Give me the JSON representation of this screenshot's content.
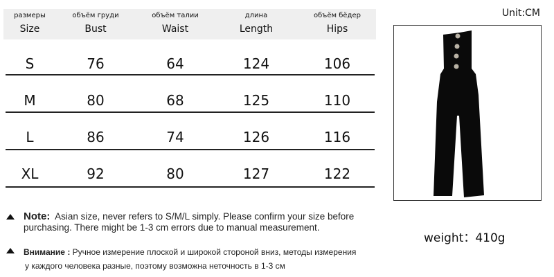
{
  "unit_label": "Unit:CM",
  "weight_label": "weight：410g",
  "table": {
    "headers": [
      {
        "ru": "размеры",
        "en": "Size"
      },
      {
        "ru": "объём груди",
        "en": "Bust"
      },
      {
        "ru": "объём талии",
        "en": "Waist"
      },
      {
        "ru": "длина",
        "en": "Length"
      },
      {
        "ru": "объём бёдер",
        "en": "Hips"
      }
    ],
    "rows": [
      [
        "S",
        "76",
        "64",
        "124",
        "106"
      ],
      [
        "M",
        "80",
        "68",
        "125",
        "110"
      ],
      [
        "L",
        "86",
        "74",
        "126",
        "116"
      ],
      [
        "XL",
        "92",
        "80",
        "127",
        "122"
      ]
    ]
  },
  "notes": {
    "en_label": "Note:",
    "en_line1": "Asian size, never refers to S/M/L simply. Please confirm your size before",
    "en_line2": "purchasing. There might be 1-3 cm errors due to manual measurement.",
    "ru_label": "Внимание :",
    "ru_line1": "Ручное измерение плоской и широкой стороной вниз, методы измерения",
    "ru_line2": "у каждого человека разные, поэтому возможна неточность в 1-3 см"
  },
  "colors": {
    "header_bg": "#efefef",
    "garment": "#0a0a0a"
  },
  "icons": [
    "triangle-up-icon"
  ]
}
